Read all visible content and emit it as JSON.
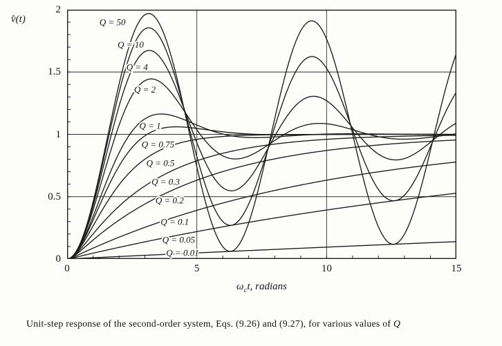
{
  "figure": {
    "y_axis_title": "v̂(t)",
    "x_axis_label": {
      "omega": "ω",
      "sub": "c",
      "rest": "t, radians"
    },
    "caption_text": "Unit-step response of the second-order system, Eqs. (9.26) and (9.27), for various values of ",
    "caption_q": "Q"
  },
  "chart_data": {
    "type": "line",
    "title": "Unit-step response of the second-order system for various values of Q",
    "xlabel": "ω_c t, radians",
    "ylabel": "v̂(t)",
    "xlim": [
      0,
      15
    ],
    "ylim": [
      0,
      2
    ],
    "x_ticks": [
      0,
      5,
      10,
      15
    ],
    "x_tick_labels": [
      "0",
      "5",
      "10",
      "15"
    ],
    "y_ticks": [
      0,
      0.5,
      1,
      1.5,
      2
    ],
    "y_tick_labels": [
      "0",
      "0.5",
      "1",
      "1.5",
      "2"
    ],
    "grid": {
      "x_lines": [
        5,
        10
      ],
      "y_lines": [
        0.5,
        1,
        1.5
      ]
    },
    "minor_ticks": {
      "x_step": 1,
      "y_step": 0.1
    },
    "line_color": "#1b1b1b",
    "model": "v(t) = unit-step response of H(s) = 1/(s^2 + s/Q + 1); horizontal axis is normalized time wc*t",
    "series": [
      {
        "name": "Q = 50",
        "Q": 50,
        "label_x": 1.75,
        "label_y": 1.9
      },
      {
        "name": "Q = 10",
        "Q": 10,
        "label_x": 2.45,
        "label_y": 1.72
      },
      {
        "name": "Q = 4",
        "Q": 4,
        "label_x": 2.7,
        "label_y": 1.54
      },
      {
        "name": "Q = 2",
        "Q": 2,
        "label_x": 3.0,
        "label_y": 1.36
      },
      {
        "name": "Q = 1",
        "Q": 1,
        "label_x": 3.2,
        "label_y": 1.07
      },
      {
        "name": "Q = 0.75",
        "Q": 0.75,
        "label_x": 3.5,
        "label_y": 0.92
      },
      {
        "name": "Q = 0.5",
        "Q": 0.5,
        "label_x": 3.6,
        "label_y": 0.77
      },
      {
        "name": "Q = 0.3",
        "Q": 0.3,
        "label_x": 3.8,
        "label_y": 0.62
      },
      {
        "name": "Q = 0.2",
        "Q": 0.2,
        "label_x": 3.95,
        "label_y": 0.47
      },
      {
        "name": "Q = 0.1",
        "Q": 0.1,
        "label_x": 4.15,
        "label_y": 0.3
      },
      {
        "name": "Q = 0.05",
        "Q": 0.05,
        "label_x": 4.3,
        "label_y": 0.155
      },
      {
        "name": "Q = 0.01",
        "Q": 0.01,
        "label_x": 4.45,
        "label_y": 0.05
      }
    ]
  }
}
